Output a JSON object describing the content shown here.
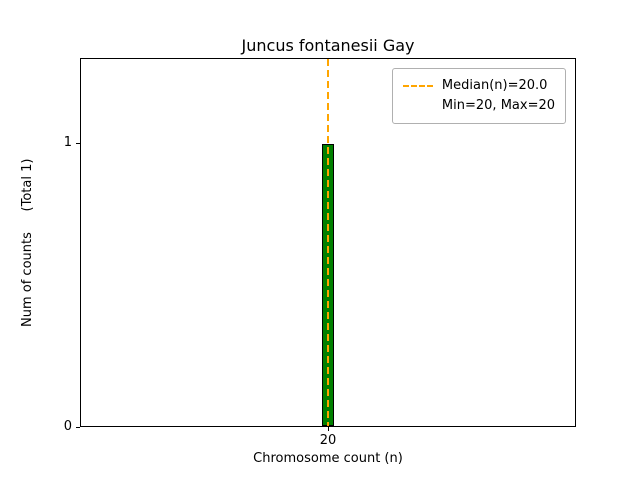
{
  "chart_data": {
    "type": "bar",
    "title": "Juncus fontanesii Gay",
    "xlabel": "Chromosome count (n)",
    "ylabel": "Num of counts     (Total 1)",
    "categories": [
      20
    ],
    "values": [
      1
    ],
    "total": 1,
    "xlim": [
      19.5,
      20.5
    ],
    "ylim": [
      0,
      1.3
    ],
    "xticks": [
      20
    ],
    "yticks": [
      0,
      1
    ],
    "bar_width": 0.026,
    "bar_color": "#008000",
    "bar_edge_color": "#000000",
    "grid": false,
    "median_line": {
      "x": 20,
      "color": "#FFA500",
      "style": "dashed"
    },
    "legend": {
      "position": "upper right",
      "entries": [
        {
          "swatch": "dashed-line",
          "color": "#FFA500",
          "label": "Median(n)=20.0"
        },
        {
          "swatch": "none",
          "color": null,
          "label": "Min=20, Max=20"
        }
      ]
    }
  }
}
